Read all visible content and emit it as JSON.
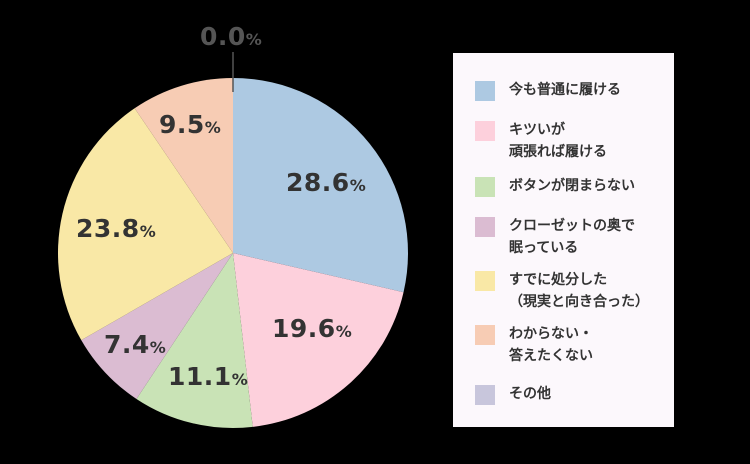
{
  "chart_data": {
    "type": "pie",
    "title": "",
    "start_angle_deg": 0,
    "direction": "clockwise",
    "categories": [
      "今も普通に履ける",
      "キツいが頑張れば履ける",
      "ボタンが閉まらない",
      "クローゼットの奥で眠っている",
      "すでに処分した（現実と向き合った）",
      "わからない・答えたくない",
      "その他"
    ],
    "values": [
      28.6,
      19.6,
      11.1,
      7.4,
      23.8,
      9.5,
      0.0
    ],
    "colors": [
      "#adc9e2",
      "#fdd0dc",
      "#c9e3b6",
      "#dbbcd2",
      "#f9e8a6",
      "#f7ccb4",
      "#c8c6dc"
    ],
    "labels": [
      "28.6",
      "19.6",
      "11.1",
      "7.4",
      "23.8",
      "9.5",
      "0.0"
    ],
    "unit": "%",
    "legend_position": "right"
  },
  "legend": [
    {
      "text": "今も普通に履ける"
    },
    {
      "text": "キツいが\n頑張れば履ける"
    },
    {
      "text": "ボタンが閉まらない"
    },
    {
      "text": "クローゼットの奥で\n眠っている"
    },
    {
      "text": "すでに処分した\n（現実と向き合った）"
    },
    {
      "text": "わからない・\n答えたくない"
    },
    {
      "text": "その他"
    }
  ]
}
